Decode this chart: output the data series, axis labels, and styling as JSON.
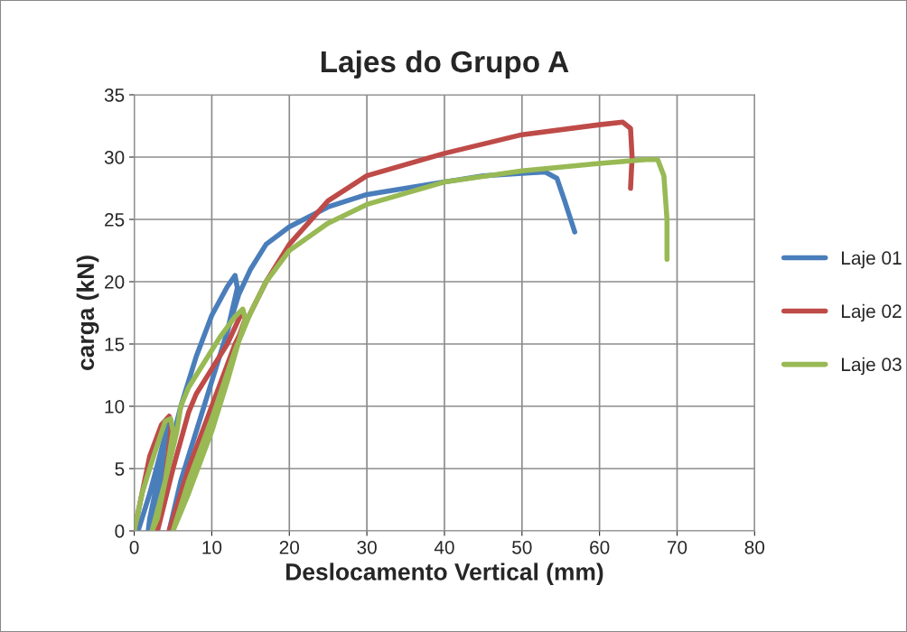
{
  "chart_data": {
    "type": "line",
    "title": "Lajes do Grupo A",
    "xlabel": "Deslocamento Vertical (mm)",
    "ylabel": "carga (kN)",
    "xlim": [
      0,
      80
    ],
    "xticks": [
      0,
      10,
      20,
      30,
      40,
      50,
      60,
      70,
      80
    ],
    "ylim": [
      0,
      35
    ],
    "yticks": [
      0,
      5,
      10,
      15,
      20,
      25,
      30,
      35
    ],
    "grid": true,
    "legend": "right",
    "marker": "none",
    "line_style": "solid",
    "series": [
      {
        "name": "Laje 01",
        "color": "#4a7ebb",
        "x": [
          0.5,
          2,
          3.5,
          4.5,
          4,
          3,
          2,
          1.8,
          3,
          5,
          6,
          8,
          10,
          12,
          13,
          13.3,
          12,
          10,
          8,
          6,
          4.5,
          6,
          8,
          10,
          12,
          13.5,
          15,
          17,
          20,
          25,
          30,
          40,
          45,
          50,
          53,
          54.5,
          55.5,
          56.8
        ],
        "values": [
          0,
          3,
          6.5,
          9,
          7,
          4,
          1,
          0,
          3,
          7.5,
          10,
          14,
          17.3,
          19.6,
          20.5,
          19.5,
          16,
          12,
          8,
          4,
          0,
          4,
          8,
          12,
          16,
          19,
          21,
          23,
          24.4,
          26,
          27,
          28,
          28.5,
          28.7,
          28.8,
          28.3,
          26.5,
          24
        ]
      },
      {
        "name": "Laje 02",
        "color": "#be4b48",
        "x": [
          0,
          1,
          2,
          3.5,
          4.5,
          4.8,
          4,
          3.2,
          3,
          5,
          7,
          8,
          10,
          12,
          14,
          14.3,
          12,
          10,
          8,
          6,
          4.5,
          7,
          10,
          13,
          15,
          17,
          20,
          25,
          30,
          40,
          50,
          60,
          63,
          64,
          64.2,
          64
        ],
        "values": [
          0,
          3,
          6,
          8.5,
          9.2,
          8.5,
          4,
          1,
          0,
          5,
          9.5,
          11,
          13,
          15,
          17.7,
          17,
          13,
          9,
          5,
          2,
          0,
          5,
          10,
          15,
          17.5,
          20,
          23,
          26.5,
          28.5,
          30.3,
          31.8,
          32.6,
          32.8,
          32.3,
          30,
          27.5
        ]
      },
      {
        "name": "Laje 03",
        "color": "#98b954",
        "x": [
          0,
          1,
          2.5,
          4,
          4.7,
          5,
          4,
          3,
          2.3,
          4,
          5.5,
          6,
          7,
          9,
          11,
          13,
          14,
          14.3,
          12,
          10,
          7,
          5,
          7,
          10,
          13,
          15,
          17,
          20,
          25,
          30,
          40,
          50,
          60,
          66,
          67.5,
          68.3,
          68.7,
          68.7
        ],
        "values": [
          0,
          3,
          6,
          8.8,
          9,
          8,
          4,
          1,
          0,
          4,
          8,
          10,
          11.5,
          13.5,
          15.5,
          17.2,
          17.8,
          17,
          12,
          8,
          3,
          0,
          4,
          9,
          14.5,
          17.5,
          20,
          22.5,
          24.7,
          26.2,
          28,
          28.9,
          29.5,
          29.8,
          29.8,
          28.5,
          25,
          21.8
        ]
      }
    ]
  }
}
